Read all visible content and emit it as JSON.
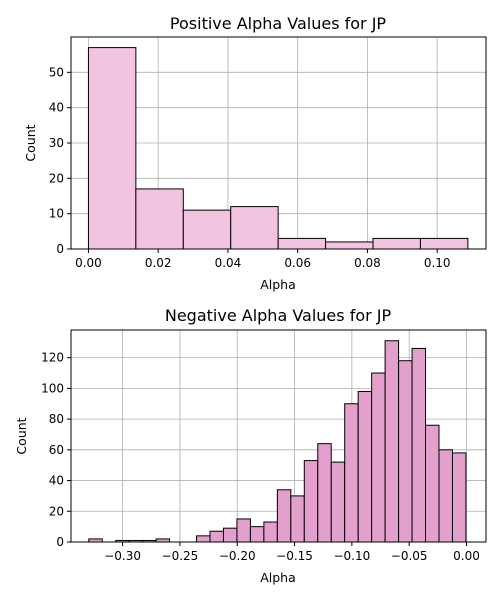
{
  "chart_data": [
    {
      "type": "bar",
      "title": "Positive Alpha Values for JP",
      "xlabel": "Alpha",
      "ylabel": "Count",
      "color": "#f2c4e1",
      "xlim": [
        -0.005,
        0.114
      ],
      "ylim": [
        0,
        60
      ],
      "xticks": [
        0.0,
        0.02,
        0.04,
        0.06,
        0.08,
        0.1
      ],
      "xtick_labels": [
        "0.00",
        "0.02",
        "0.04",
        "0.06",
        "0.08",
        "0.10"
      ],
      "yticks": [
        0,
        10,
        20,
        30,
        40,
        50
      ],
      "ytick_labels": [
        "0",
        "10",
        "20",
        "30",
        "40",
        "50"
      ],
      "grid": true,
      "bin_start": 0.0,
      "bin_width": 0.0136,
      "values": [
        57,
        17,
        11,
        12,
        3,
        2,
        3,
        3
      ]
    },
    {
      "type": "bar",
      "title": "Negative Alpha Values for JP",
      "xlabel": "Alpha",
      "ylabel": "Count",
      "color": "#e3a0cd",
      "xlim": [
        -0.345,
        0.017
      ],
      "ylim": [
        0,
        138
      ],
      "xticks": [
        -0.3,
        -0.25,
        -0.2,
        -0.15,
        -0.1,
        -0.05,
        0.0
      ],
      "xtick_labels": [
        "−0.30",
        "−0.25",
        "−0.20",
        "−0.15",
        "−0.10",
        "−0.05",
        "0.00"
      ],
      "yticks": [
        0,
        20,
        40,
        60,
        80,
        100,
        120
      ],
      "ytick_labels": [
        "0",
        "20",
        "40",
        "60",
        "80",
        "100",
        "120"
      ],
      "grid": true,
      "bin_start": -0.3295,
      "bin_width": 0.01175,
      "values": [
        2,
        0,
        1,
        1,
        1,
        2,
        0,
        0,
        4,
        7,
        9,
        15,
        10,
        13,
        34,
        30,
        53,
        64,
        52,
        90,
        98,
        110,
        131,
        118,
        126,
        76,
        60,
        58
      ]
    }
  ]
}
